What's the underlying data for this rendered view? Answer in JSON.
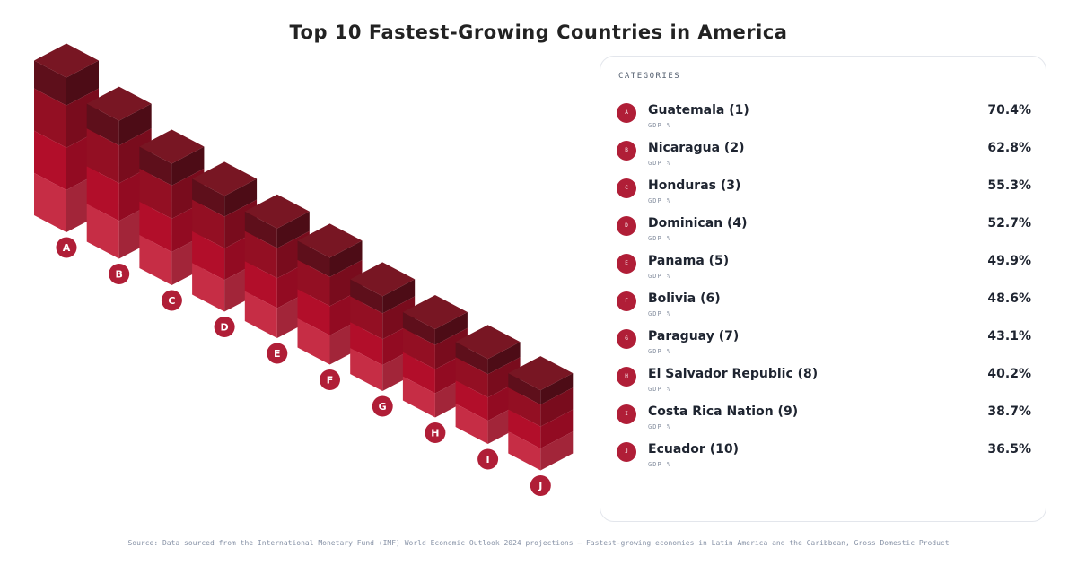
{
  "chart_data": {
    "type": "bar",
    "title": "Top 10 Fastest-Growing Countries in America",
    "categories": [
      "A",
      "B",
      "C",
      "D",
      "E",
      "F",
      "G",
      "H",
      "I",
      "J"
    ],
    "values": [
      70.4,
      62.8,
      55.3,
      52.7,
      49.9,
      48.6,
      43.1,
      40.2,
      38.7,
      36.5
    ],
    "ylim": [
      0,
      75
    ],
    "colors": {
      "top": "#781623",
      "top_dark": "#5e0f1b",
      "band1": "#930f23",
      "band2": "#b20e2a",
      "band3": "#c62d45",
      "side_shade": 0.82,
      "badge": "#b01e37"
    }
  },
  "panel": {
    "header": "CATEGORIES",
    "items": [
      {
        "badge": "A",
        "name": "Guatemala (1)",
        "sub": "GDP %",
        "value": "70.4%"
      },
      {
        "badge": "B",
        "name": "Nicaragua (2)",
        "sub": "GDP %",
        "value": "62.8%"
      },
      {
        "badge": "C",
        "name": "Honduras (3)",
        "sub": "GDP %",
        "value": "55.3%"
      },
      {
        "badge": "D",
        "name": "Dominican (4)",
        "sub": "GDP %",
        "value": "52.7%"
      },
      {
        "badge": "E",
        "name": "Panama (5)",
        "sub": "GDP %",
        "value": "49.9%"
      },
      {
        "badge": "F",
        "name": "Bolivia (6)",
        "sub": "GDP %",
        "value": "48.6%"
      },
      {
        "badge": "G",
        "name": "Paraguay (7)",
        "sub": "GDP %",
        "value": "43.1%"
      },
      {
        "badge": "H",
        "name": "El Salvador Republic (8)",
        "sub": "GDP %",
        "value": "40.2%"
      },
      {
        "badge": "I",
        "name": "Costa Rica Nation (9)",
        "sub": "GDP %",
        "value": "38.7%"
      },
      {
        "badge": "J",
        "name": "Ecuador (10)",
        "sub": "GDP %",
        "value": "36.5%"
      }
    ]
  },
  "footer": {
    "text": "Source: Data sourced from the International Monetary Fund (IMF) World Economic Outlook 2024 projections — Fastest-growing economies in Latin America and the Caribbean, Gross Domestic Product"
  }
}
